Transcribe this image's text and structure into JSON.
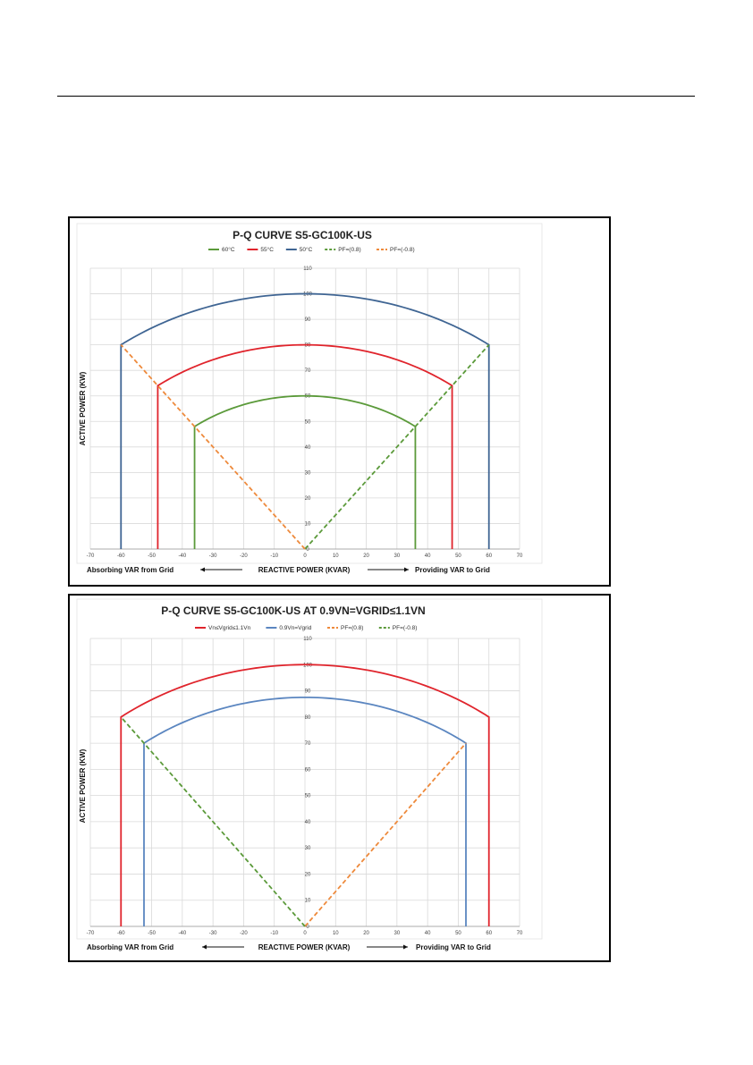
{
  "chart_data": [
    {
      "type": "line",
      "title": "P-Q CURVE S5-GC100K-US",
      "xlabel": "REACTIVE POWER (KVAR)",
      "ylabel": "ACTIVE POWER (KW)",
      "left_note": "Absorbing VAR from Grid",
      "right_note": "Providing VAR to Grid",
      "xlim": [
        -70,
        70
      ],
      "ylim": [
        0,
        110
      ],
      "x_ticks": [
        -70,
        -60,
        -50,
        -40,
        -30,
        -20,
        -10,
        0,
        10,
        20,
        30,
        40,
        50,
        60,
        70
      ],
      "y_ticks": [
        0,
        10,
        20,
        30,
        40,
        50,
        60,
        70,
        80,
        90,
        100,
        110
      ],
      "grid": true,
      "legend_position": "top",
      "series": [
        {
          "name": "60°C",
          "color": "#5b9a3a",
          "style": "solid",
          "kind": "arc",
          "s": 60,
          "pf": 0.8
        },
        {
          "name": "55°C",
          "color": "#e0242c",
          "style": "solid",
          "kind": "arc",
          "s": 80,
          "pf": 0.8
        },
        {
          "name": "50°C",
          "color": "#3f6593",
          "style": "solid",
          "kind": "arc",
          "s": 100,
          "pf": 0.8
        },
        {
          "name": "PF=(0.8)",
          "color": "#5b9a3a",
          "style": "dashed",
          "kind": "line",
          "points": [
            [
              0,
              0
            ],
            [
              60,
              80
            ]
          ]
        },
        {
          "name": "PF=(-0.8)",
          "color": "#ee8a3c",
          "style": "dashed",
          "kind": "line",
          "points": [
            [
              0,
              0
            ],
            [
              -60,
              80
            ]
          ]
        }
      ]
    },
    {
      "type": "line",
      "title": "P-Q CURVE S5-GC100K-US AT 0.9VN=VGRID≤1.1VN",
      "xlabel": "REACTIVE POWER (KVAR)",
      "ylabel": "ACTIVE POWER (KW)",
      "left_note": "Absorbing VAR from Grid",
      "right_note": "Providing VAR to Grid",
      "xlim": [
        -70,
        70
      ],
      "ylim": [
        0,
        110
      ],
      "x_ticks": [
        -70,
        -60,
        -50,
        -40,
        -30,
        -20,
        -10,
        0,
        10,
        20,
        30,
        40,
        50,
        60,
        70
      ],
      "y_ticks": [
        0,
        10,
        20,
        30,
        40,
        50,
        60,
        70,
        80,
        90,
        100,
        110
      ],
      "grid": true,
      "legend_position": "top",
      "series": [
        {
          "name": "Vn≤Vgrid≤1.1Vn",
          "color": "#e0242c",
          "style": "solid",
          "kind": "arc",
          "s": 100,
          "pf": 0.8
        },
        {
          "name": "0.9Vn=Vgrid",
          "color": "#5b86c0",
          "style": "solid",
          "kind": "arc",
          "s": 87.5,
          "pf": 0.8
        },
        {
          "name": "PF=(0.8)",
          "color": "#ee8a3c",
          "style": "dashed",
          "kind": "line",
          "points": [
            [
              0,
              0
            ],
            [
              52.5,
              70
            ]
          ]
        },
        {
          "name": "PF=(-0.8)",
          "color": "#5b9a3a",
          "style": "dashed",
          "kind": "line",
          "points": [
            [
              0,
              0
            ],
            [
              -60,
              80
            ]
          ]
        }
      ]
    }
  ]
}
